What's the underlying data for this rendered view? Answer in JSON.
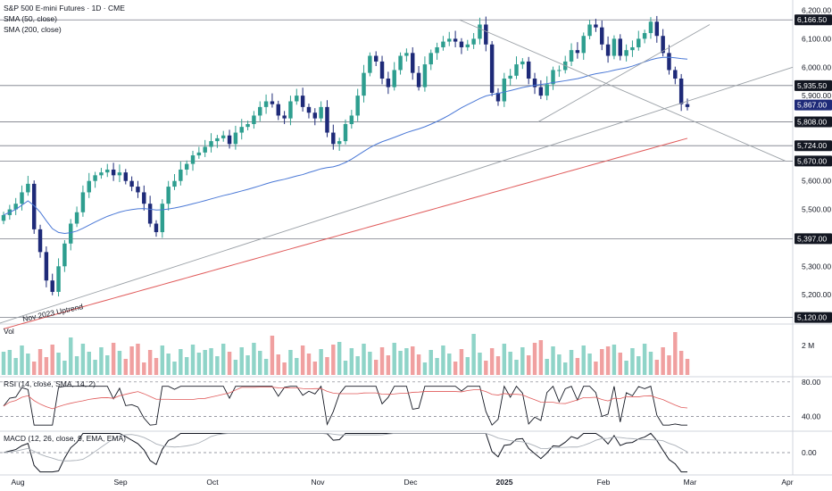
{
  "header": {
    "title": "S&P 500 E-mini Futures · 1D · CME",
    "sma50_label": "SMA (50, close)",
    "sma200_label": "SMA (200, close)"
  },
  "panes": {
    "volume_label": "Vol",
    "rsi_label": "RSI (14, close, SMA, 14, 2)",
    "macd_label": "MACD (12, 26, close, 9, EMA, EMA)"
  },
  "annotation": "Nov 2023 Uptrend",
  "colors": {
    "up": "#2e9e8f",
    "down": "#1e2a78",
    "sma50": "#4a78d6",
    "sma200": "#e05a5a",
    "vol_up": "#8fd4c8",
    "vol_down": "#f0a0a0",
    "trendline": "#9aa0a6",
    "grid": "#e6e6e6"
  },
  "chart_data": {
    "type": "candlestick",
    "y_ticks": [
      "6,200.00",
      "6,100.00",
      "6,000.00",
      "5,900.00",
      "5,600.00",
      "5,500.00",
      "5,300.00",
      "5,200.00"
    ],
    "ylim": [
      5100,
      6230
    ],
    "x_ticks": [
      "Aug",
      "Sep",
      "Oct",
      "Nov",
      "Dec",
      "2025",
      "Feb",
      "Mar",
      "Apr"
    ],
    "horizontal_levels": [
      {
        "label": "6,166.50",
        "value": 6166.5
      },
      {
        "label": "5,935.50",
        "value": 5935.5
      },
      {
        "label": "5,808.00",
        "value": 5808.0
      },
      {
        "label": "5,724.00",
        "value": 5724.0
      },
      {
        "label": "5,670.00",
        "value": 5670.0
      },
      {
        "label": "5,397.00",
        "value": 5397.0
      },
      {
        "label": "5,120.00",
        "value": 5120.0
      }
    ],
    "last_price": {
      "label": "5,867.00",
      "value": 5867.0
    },
    "closes_approx": [
      5480,
      5500,
      5520,
      5560,
      5590,
      5430,
      5350,
      5250,
      5210,
      5300,
      5380,
      5450,
      5490,
      5560,
      5600,
      5620,
      5630,
      5640,
      5620,
      5630,
      5600,
      5580,
      5560,
      5520,
      5450,
      5420,
      5520,
      5580,
      5600,
      5640,
      5660,
      5690,
      5700,
      5720,
      5740,
      5750,
      5760,
      5730,
      5770,
      5790,
      5800,
      5830,
      5860,
      5880,
      5870,
      5830,
      5820,
      5880,
      5900,
      5860,
      5840,
      5820,
      5860,
      5770,
      5730,
      5740,
      5800,
      5830,
      5900,
      5980,
      6040,
      6020,
      5960,
      5930,
      5990,
      6040,
      6050,
      5980,
      5930,
      6010,
      6050,
      6070,
      6090,
      6100,
      6090,
      6070,
      6080,
      6100,
      6150,
      6080,
      5910,
      5880,
      5960,
      5970,
      6010,
      6020,
      5960,
      5930,
      5900,
      5940,
      5990,
      5990,
      6020,
      6060,
      6050,
      6110,
      6150,
      6140,
      6080,
      6040,
      6100,
      6040,
      6060,
      6070,
      6100,
      6120,
      6160,
      6110,
      6050,
      5990,
      5960,
      5870,
      5860
    ],
    "volume": {
      "label": "2 M",
      "value": 2000000
    },
    "rsi": {
      "ticks": [
        "80.00",
        "40.00"
      ],
      "ylim": [
        25,
        85
      ]
    },
    "macd": {
      "ticks": [
        "0.00"
      ],
      "ylim": [
        -80,
        80
      ]
    }
  }
}
